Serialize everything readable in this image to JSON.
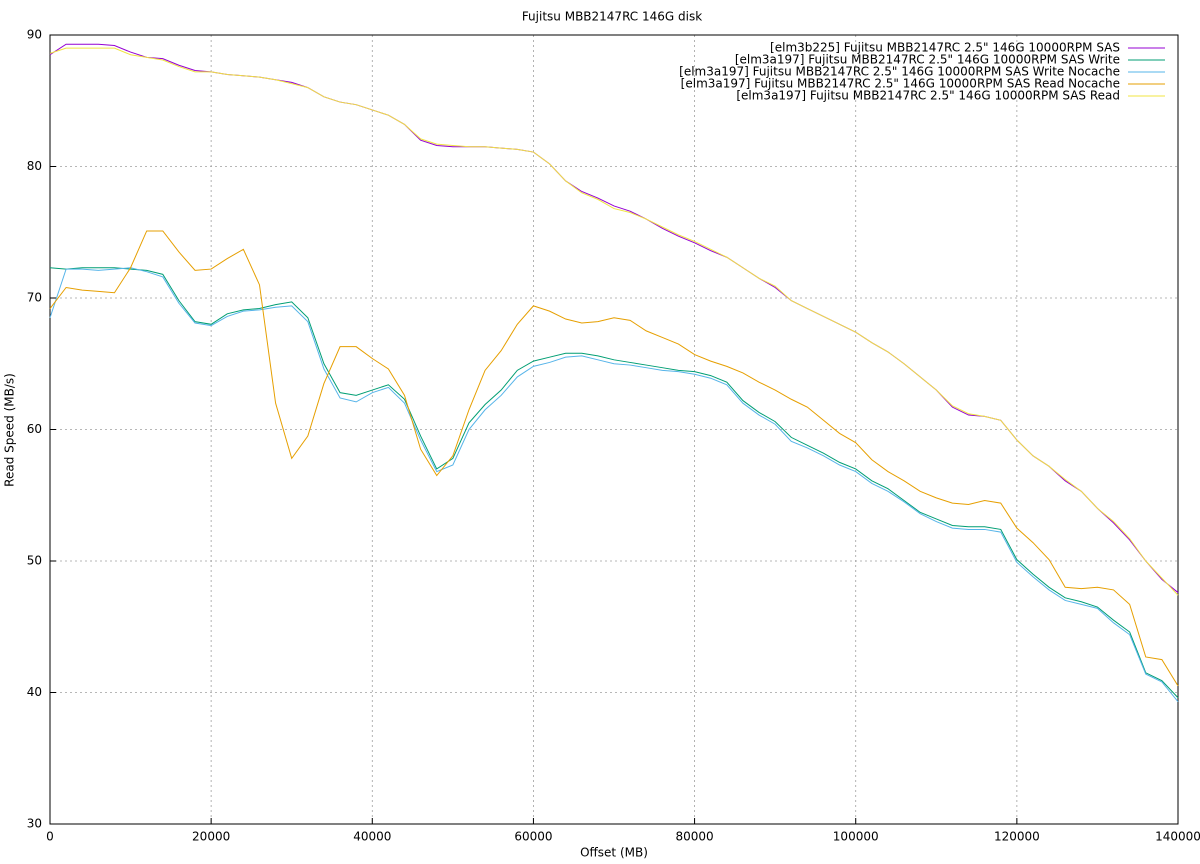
{
  "chart_data": {
    "type": "line",
    "title": "Fujitsu MBB2147RC 146G disk",
    "x_label": "Offset (MB)",
    "y_label": "Read Speed (MB/s)",
    "legend": "top-right",
    "grid": true,
    "xlim": [
      0,
      140000
    ],
    "xticks": [
      0,
      20000,
      40000,
      60000,
      80000,
      100000,
      120000,
      140000
    ],
    "ylim": [
      30,
      90
    ],
    "yticks": [
      30,
      40,
      50,
      60,
      70,
      80,
      90
    ],
    "x": [
      0,
      2000,
      4000,
      6000,
      8000,
      10000,
      12000,
      14000,
      16000,
      18000,
      20000,
      22000,
      24000,
      26000,
      28000,
      30000,
      32000,
      34000,
      36000,
      38000,
      40000,
      42000,
      44000,
      46000,
      48000,
      50000,
      52000,
      54000,
      56000,
      58000,
      60000,
      62000,
      64000,
      66000,
      68000,
      70000,
      72000,
      74000,
      76000,
      78000,
      80000,
      82000,
      84000,
      86000,
      88000,
      90000,
      92000,
      94000,
      96000,
      98000,
      100000,
      102000,
      104000,
      106000,
      108000,
      110000,
      112000,
      114000,
      116000,
      118000,
      120000,
      122000,
      124000,
      126000,
      128000,
      130000,
      132000,
      134000,
      136000,
      138000,
      140000
    ],
    "series": [
      {
        "name": "[elm3b225] Fujitsu MBB2147RC 2.5\" 146G 10000RPM SAS",
        "color": "#9400d3",
        "values": [
          88.5,
          89.3,
          89.3,
          89.3,
          89.2,
          88.7,
          88.3,
          88.2,
          87.7,
          87.3,
          87.2,
          87.0,
          86.9,
          86.8,
          86.6,
          86.4,
          86.0,
          85.3,
          84.9,
          84.7,
          84.3,
          83.9,
          83.2,
          82.0,
          81.6,
          81.5,
          81.5,
          81.5,
          81.4,
          81.3,
          81.1,
          80.2,
          78.9,
          78.1,
          77.6,
          77.0,
          76.6,
          76.0,
          75.3,
          74.7,
          74.2,
          73.6,
          73.1,
          72.3,
          71.5,
          70.8,
          69.8,
          69.2,
          68.6,
          68.0,
          67.4,
          66.6,
          65.9,
          65.0,
          64.0,
          63.0,
          61.7,
          61.1,
          61.0,
          60.7,
          59.2,
          58.0,
          57.2,
          56.1,
          55.3,
          54.0,
          52.9,
          51.6,
          50.0,
          48.6,
          47.6
        ]
      },
      {
        "name": "[elm3a197] Fujitsu MBB2147RC 2.5\" 146G 10000RPM SAS Write",
        "color": "#009e73",
        "values": [
          72.3,
          72.2,
          72.3,
          72.3,
          72.3,
          72.2,
          72.1,
          71.8,
          69.8,
          68.2,
          68.0,
          68.8,
          69.1,
          69.2,
          69.5,
          69.7,
          68.5,
          65.0,
          62.8,
          62.6,
          63.0,
          63.4,
          62.3,
          59.5,
          57.0,
          57.8,
          60.5,
          61.9,
          63.0,
          64.5,
          65.2,
          65.5,
          65.8,
          65.8,
          65.6,
          65.3,
          65.1,
          64.9,
          64.7,
          64.5,
          64.4,
          64.1,
          63.6,
          62.2,
          61.3,
          60.6,
          59.4,
          58.8,
          58.2,
          57.5,
          57.0,
          56.1,
          55.5,
          54.6,
          53.7,
          53.2,
          52.7,
          52.6,
          52.6,
          52.4,
          50.1,
          49.0,
          48.0,
          47.2,
          46.9,
          46.5,
          45.5,
          44.6,
          41.5,
          40.9,
          39.6
        ]
      },
      {
        "name": "[elm3a197] Fujitsu MBB2147RC 2.5\" 146G 10000RPM SAS Write Nocache",
        "color": "#56b4e9",
        "values": [
          68.5,
          72.2,
          72.2,
          72.1,
          72.2,
          72.3,
          72.0,
          71.6,
          69.6,
          68.1,
          67.9,
          68.6,
          69.0,
          69.1,
          69.3,
          69.4,
          68.2,
          64.6,
          62.4,
          62.1,
          62.8,
          63.2,
          62.0,
          59.2,
          56.8,
          57.3,
          60.0,
          61.5,
          62.6,
          64.0,
          64.8,
          65.1,
          65.5,
          65.6,
          65.3,
          65.0,
          64.9,
          64.7,
          64.5,
          64.4,
          64.2,
          63.9,
          63.4,
          62.0,
          61.1,
          60.4,
          59.1,
          58.6,
          58.0,
          57.3,
          56.8,
          55.9,
          55.3,
          54.5,
          53.6,
          53.0,
          52.5,
          52.4,
          52.4,
          52.2,
          49.9,
          48.8,
          47.8,
          47.0,
          46.7,
          46.4,
          45.3,
          44.4,
          41.4,
          40.8,
          39.3
        ]
      },
      {
        "name": "[elm3a197] Fujitsu MBB2147RC 2.5\" 146G 10000RPM SAS Read Nocache",
        "color": "#e69f00",
        "values": [
          69.2,
          70.8,
          70.6,
          70.5,
          70.4,
          72.3,
          75.1,
          75.1,
          73.5,
          72.1,
          72.2,
          73.0,
          73.7,
          71.0,
          62.0,
          57.8,
          59.5,
          63.5,
          66.3,
          66.3,
          65.4,
          64.6,
          62.6,
          58.5,
          56.5,
          58.0,
          61.5,
          64.5,
          66.0,
          68.0,
          69.4,
          69.0,
          68.4,
          68.1,
          68.2,
          68.5,
          68.3,
          67.5,
          67.0,
          66.5,
          65.7,
          65.2,
          64.8,
          64.3,
          63.6,
          63.0,
          62.3,
          61.7,
          60.7,
          59.7,
          59.0,
          57.7,
          56.8,
          56.1,
          55.3,
          54.8,
          54.4,
          54.3,
          54.6,
          54.4,
          52.5,
          51.4,
          50.1,
          48.0,
          47.9,
          48.0,
          47.8,
          46.7,
          42.7,
          42.5,
          40.5
        ]
      },
      {
        "name": "[elm3a197] Fujitsu MBB2147RC 2.5\" 146G 10000RPM SAS Read",
        "color": "#f0e442",
        "values": [
          88.6,
          89.0,
          89.0,
          89.0,
          89.0,
          88.5,
          88.3,
          88.1,
          87.6,
          87.2,
          87.2,
          87.0,
          86.9,
          86.8,
          86.6,
          86.3,
          86.0,
          85.3,
          84.9,
          84.7,
          84.3,
          83.9,
          83.2,
          82.1,
          81.7,
          81.6,
          81.5,
          81.5,
          81.4,
          81.3,
          81.1,
          80.2,
          78.9,
          78.0,
          77.5,
          76.8,
          76.5,
          76.0,
          75.4,
          74.8,
          74.3,
          73.7,
          73.1,
          72.3,
          71.5,
          70.9,
          69.8,
          69.2,
          68.6,
          68.0,
          67.4,
          66.6,
          65.9,
          65.0,
          64.0,
          63.0,
          61.8,
          61.2,
          61.0,
          60.7,
          59.2,
          58.0,
          57.2,
          56.2,
          55.3,
          54.0,
          53.0,
          51.7,
          50.0,
          48.7,
          47.4
        ]
      }
    ]
  }
}
